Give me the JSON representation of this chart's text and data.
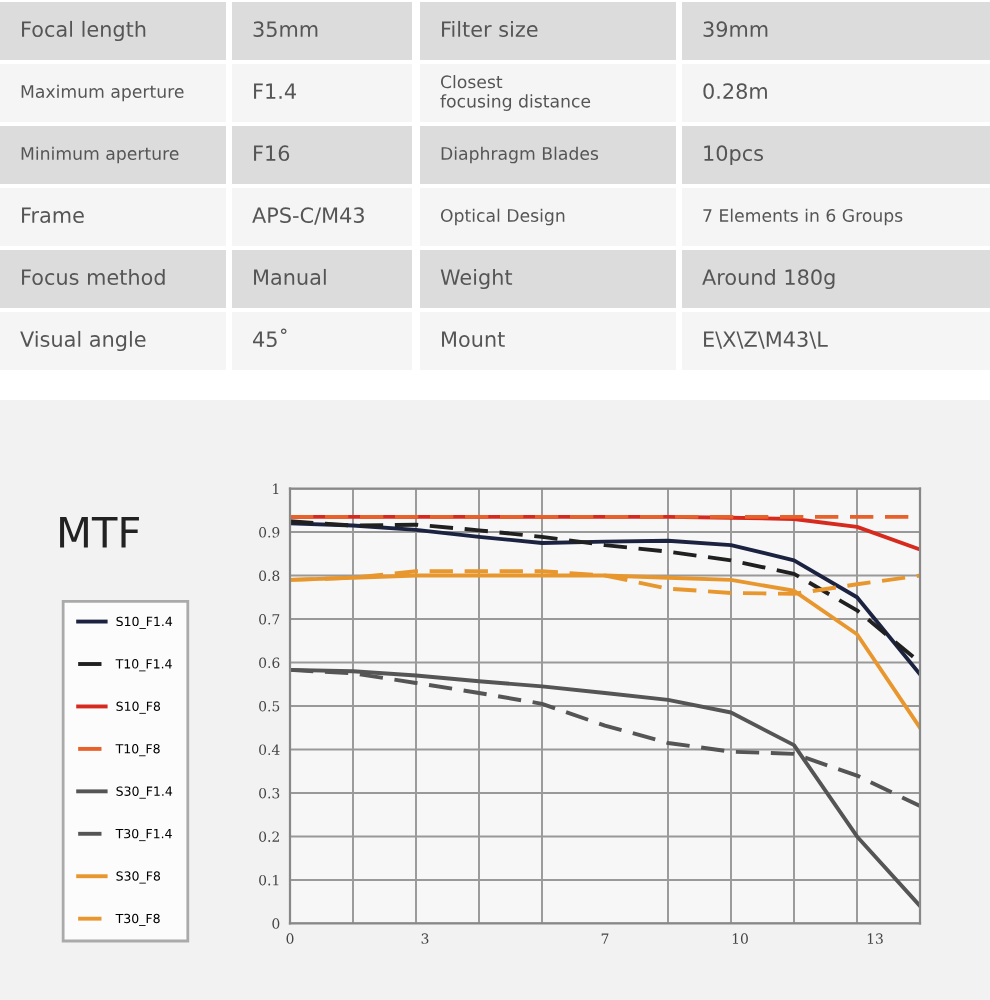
{
  "chart_data": [
    {
      "type": "other",
      "annotations": [
        "Focal length",
        "35mm",
        "Filter size",
        "39mm",
        "Maximum aperture",
        "F1.4",
        "Closest\nfocusing distance",
        "0.28m",
        "Minimum aperture",
        "F16",
        "Diaphragm Blades",
        "10pcs",
        "Frame",
        "APS-C/M43",
        "Optical Design",
        "7 Elements in 6 Groups",
        "Focus method",
        "Manual",
        "Weight",
        "Around 180g",
        "Visual angle",
        "45˚",
        "Mount",
        "E\\X\\Z\\M43\\L"
      ]
    },
    {
      "type": "line",
      "title": "MTF",
      "x": [
        0,
        1.4,
        2.8,
        4.2,
        5.6,
        7,
        8.4,
        9.8,
        11.2,
        12.6,
        14
      ],
      "series": [
        {
          "name": "S10_F1.4",
          "color": "#1c2340",
          "line_style": "solid",
          "values": [
            0.92,
            0.915,
            0.905,
            0.889,
            0.875,
            0.878,
            0.88,
            0.87,
            0.835,
            0.75,
            0.573
          ]
        },
        {
          "name": "T10_F1.4",
          "color": "#202020",
          "line_style": "dashed",
          "values": [
            0.925,
            0.915,
            0.917,
            0.904,
            0.889,
            0.87,
            0.855,
            0.835,
            0.804,
            0.72,
            0.6
          ]
        },
        {
          "name": "S10_F8",
          "color": "#d62a1e",
          "line_style": "solid",
          "values": [
            0.935,
            0.935,
            0.935,
            0.935,
            0.935,
            0.935,
            0.935,
            0.933,
            0.93,
            0.912,
            0.86
          ]
        },
        {
          "name": "T10_F8",
          "color": "#e8602a",
          "line_style": "dashed",
          "values": [
            0.935,
            0.935,
            0.935,
            0.935,
            0.935,
            0.935,
            0.935,
            0.935,
            0.935,
            0.935,
            0.935
          ]
        },
        {
          "name": "S30_F1.4",
          "color": "#555555",
          "line_style": "solid",
          "values": [
            0.583,
            0.58,
            0.57,
            0.557,
            0.545,
            0.53,
            0.514,
            0.485,
            0.41,
            0.2,
            0.04
          ]
        },
        {
          "name": "T30_F1.4",
          "color": "#555555",
          "line_style": "dashed",
          "values": [
            0.583,
            0.575,
            0.553,
            0.53,
            0.505,
            0.455,
            0.415,
            0.395,
            0.39,
            0.34,
            0.27
          ]
        },
        {
          "name": "S30_F8",
          "color": "#e8972e",
          "line_style": "solid",
          "values": [
            0.79,
            0.795,
            0.8,
            0.8,
            0.8,
            0.8,
            0.795,
            0.79,
            0.765,
            0.665,
            0.45
          ]
        },
        {
          "name": "T30_F8",
          "color": "#e8972e",
          "line_style": "dashed",
          "values": [
            0.79,
            0.795,
            0.81,
            0.81,
            0.81,
            0.8,
            0.77,
            0.76,
            0.758,
            0.78,
            0.8
          ]
        }
      ],
      "xlim": [
        0,
        14
      ],
      "xticks": [
        0,
        {
          "value": 1.4,
          "label": null
        },
        {
          "value": 2.8,
          "label": null
        },
        3,
        {
          "value": 4.2,
          "label": null
        },
        {
          "value": 5.6,
          "label": null
        },
        7,
        {
          "value": 8.4,
          "label": null
        },
        10,
        {
          "value": 9.8,
          "label": null
        },
        {
          "value": 11.2,
          "label": null
        },
        {
          "value": 12.6,
          "label": null
        },
        13,
        {
          "value": 14,
          "label": null
        }
      ],
      "ylim": [
        0,
        1
      ],
      "yticks": [
        0,
        0.1,
        0.2,
        0.3,
        0.4,
        0.5,
        0.6,
        0.7,
        0.8,
        0.9,
        1
      ],
      "grid": true,
      "legend": "left"
    }
  ]
}
